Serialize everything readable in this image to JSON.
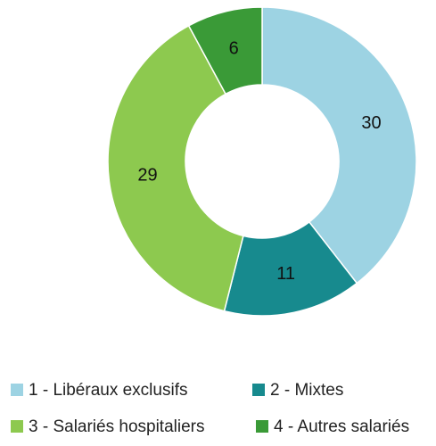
{
  "chart_data": {
    "type": "donut",
    "categories": [
      "1 - Libéraux exclusifs",
      "2 - Mixtes",
      "3 - Salariés hospitaliers",
      "4 - Autres salariés"
    ],
    "values": [
      30,
      11,
      29,
      6
    ],
    "colors": [
      "#9dd3e3",
      "#178a8e",
      "#8dc94f",
      "#3a9a37"
    ],
    "legend": "bottom"
  }
}
